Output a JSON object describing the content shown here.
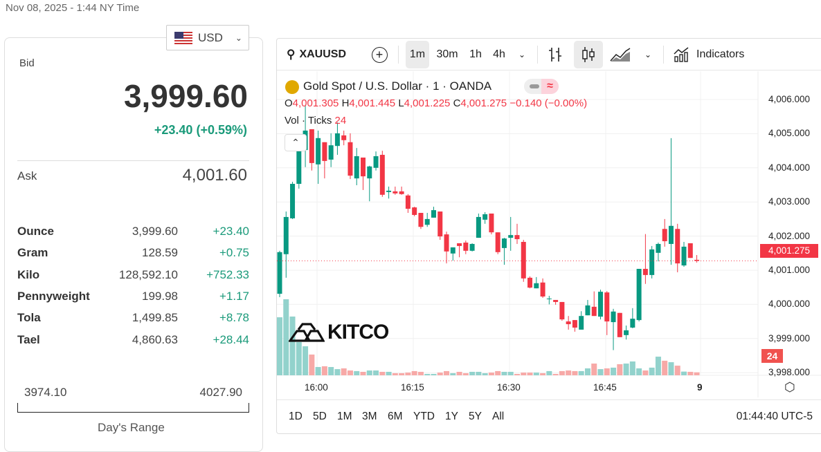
{
  "header": {
    "datetime": "Nov 08, 2025 - 1:44 NY Time"
  },
  "currency": {
    "selected": "USD",
    "flag_icon": "us-flag-icon"
  },
  "quote": {
    "bid_label": "Bid",
    "bid": "3,999.60",
    "change": "+23.40 (+0.59%)",
    "ask_label": "Ask",
    "ask": "4,001.60"
  },
  "weights": [
    {
      "unit": "Ounce",
      "price": "3,999.60",
      "change": "+23.40"
    },
    {
      "unit": "Gram",
      "price": "128.59",
      "change": "+0.75"
    },
    {
      "unit": "Kilo",
      "price": "128,592.10",
      "change": "+752.33"
    },
    {
      "unit": "Pennyweight",
      "price": "199.98",
      "change": "+1.17"
    },
    {
      "unit": "Tola",
      "price": "1,499.85",
      "change": "+8.78"
    },
    {
      "unit": "Tael",
      "price": "4,860.63",
      "change": "+28.44"
    }
  ],
  "day_range": {
    "low": "3974.10",
    "high": "4027.90",
    "label": "Day's Range"
  },
  "toolbar": {
    "symbol": "XAUUSD",
    "intervals": [
      "1m",
      "30m",
      "1h",
      "4h"
    ],
    "active_interval": "1m",
    "indicators": "Indicators"
  },
  "legend": {
    "title": "Gold Spot / U.S. Dollar · 1 · OANDA",
    "o_label": "O",
    "o": "4,001.305",
    "h_label": "H",
    "h": "4,001.445",
    "l_label": "L",
    "l": "4,001.225",
    "c_label": "C",
    "c": "4,001.275",
    "change": "−0.140 (−0.00%)",
    "vol_label": "Vol · Ticks",
    "vol": "24"
  },
  "colors": {
    "up": "#089981",
    "down": "#f23645",
    "vol_up": "#92d2cc",
    "vol_down": "#f7a9a7"
  },
  "watermark": "KITCO",
  "bottom": {
    "ranges": [
      "1D",
      "5D",
      "1M",
      "3M",
      "6M",
      "YTD",
      "1Y",
      "5Y",
      "All"
    ],
    "clock": "01:44:40 UTC-5"
  },
  "chart_data": {
    "type": "candlestick",
    "title": "Gold Spot / U.S. Dollar · 1 · OANDA",
    "y_ticks": [
      "4,006.000",
      "4,005.000",
      "4,004.000",
      "4,003.000",
      "4,002.000",
      "4,001.000",
      "4,000.000",
      "3,999.000",
      "3,998.000"
    ],
    "y_tick_values": [
      4006,
      4005,
      4004,
      4003,
      4002,
      4001,
      4000,
      3999,
      3998
    ],
    "x_ticks": [
      "16:00",
      "16:15",
      "16:30",
      "16:45",
      "9"
    ],
    "last_price": "4,001.275",
    "last_volume": "24",
    "grid": true,
    "ohlc": [
      [
        4000.31,
        4001.57,
        4000.21,
        4001.53
      ],
      [
        4001.47,
        4002.72,
        4000.78,
        4002.56
      ],
      [
        4002.52,
        4003.59,
        4002.5,
        4003.53
      ],
      [
        4003.53,
        4004.72,
        4003.39,
        4004.54
      ],
      [
        4004.52,
        4005.82,
        4004.02,
        4005.09
      ],
      [
        4005.13,
        4005.13,
        4003.92,
        4004.14
      ],
      [
        4004.1,
        4005.09,
        4003.53,
        4004.87
      ],
      [
        4004.75,
        4004.75,
        4003.69,
        4004.2
      ],
      [
        4004.24,
        4005.01,
        4004.02,
        4004.66
      ],
      [
        4004.64,
        4005.33,
        4004.38,
        4005.01
      ],
      [
        4004.95,
        4005.09,
        4004.66,
        4004.81
      ],
      [
        4004.75,
        4005.01,
        4003.67,
        4003.77
      ],
      [
        4003.69,
        4004.58,
        4003.49,
        4004.34
      ],
      [
        4004.3,
        4004.3,
        4003.35,
        4003.75
      ],
      [
        4003.69,
        4004.06,
        4003.02,
        4004.04
      ],
      [
        4004.0,
        4004.48,
        4003.92,
        4004.34
      ],
      [
        4004.38,
        4004.5,
        4003.15,
        4003.21
      ],
      [
        4003.29,
        4003.45,
        4003.1,
        4003.33
      ],
      [
        4003.31,
        4003.45,
        4003.21,
        4003.25
      ],
      [
        4003.31,
        4003.45,
        4003.21,
        4003.23
      ],
      [
        4003.19,
        4003.23,
        4002.68,
        4002.8
      ],
      [
        4002.84,
        4002.86,
        4002.58,
        4002.62
      ],
      [
        4002.68,
        4002.68,
        4002.21,
        4002.27
      ],
      [
        4002.33,
        4002.68,
        4002.27,
        4002.5
      ],
      [
        4002.54,
        4002.86,
        4002.54,
        4002.76
      ],
      [
        4002.72,
        4002.72,
        4001.89,
        4001.99
      ],
      [
        4002.05,
        4002.13,
        4001.2,
        4001.55
      ],
      [
        4001.49,
        4001.67,
        4001.28,
        4001.67
      ],
      [
        4001.79,
        4001.79,
        4001.38,
        4001.71
      ],
      [
        4001.81,
        4001.87,
        4001.47,
        4001.57
      ],
      [
        4001.57,
        4001.79,
        4001.55,
        4001.77
      ],
      [
        4001.95,
        4002.66,
        4001.95,
        4002.56
      ],
      [
        4002.48,
        4002.7,
        4002.36,
        4002.64
      ],
      [
        4002.66,
        4002.66,
        4002.05,
        4002.11
      ],
      [
        4002.11,
        4002.11,
        4001.47,
        4001.53
      ],
      [
        4001.65,
        4001.95,
        4001.16,
        4001.93
      ],
      [
        4001.95,
        4002.56,
        4001.57,
        4002.03
      ],
      [
        4002.03,
        4002.36,
        4001.77,
        4001.91
      ],
      [
        4001.83,
        4001.89,
        4000.66,
        4000.76
      ],
      [
        4000.78,
        4000.82,
        4000.47,
        4000.49
      ],
      [
        4000.47,
        4000.8,
        4000.47,
        4000.62
      ],
      [
        4000.64,
        4000.76,
        4000.19,
        4000.23
      ],
      [
        4000.15,
        4000.25,
        4000.0,
        4000.17
      ],
      [
        4000.13,
        4000.13,
        3999.99,
        4000.07
      ],
      [
        4000.07,
        4000.07,
        3999.52,
        3999.56
      ],
      [
        3999.5,
        3999.66,
        3999.26,
        3999.42
      ],
      [
        3999.54,
        3999.54,
        3999.2,
        3999.32
      ],
      [
        3999.26,
        3999.8,
        3999.26,
        3999.66
      ],
      [
        3999.68,
        4000.13,
        3999.68,
        3999.97
      ],
      [
        3999.93,
        4000.38,
        3999.66,
        3999.66
      ],
      [
        3999.64,
        4000.43,
        3999.56,
        4000.37
      ],
      [
        4000.35,
        4000.39,
        3999.1,
        3999.5
      ],
      [
        3999.48,
        3999.87,
        3998.66,
        3999.79
      ],
      [
        3999.75,
        3999.75,
        3999.04,
        3999.04
      ],
      [
        3999.1,
        3999.38,
        3998.97,
        3999.24
      ],
      [
        3999.32,
        3999.89,
        3999.3,
        3999.58
      ],
      [
        3999.54,
        4001.04,
        3999.5,
        4001.04
      ],
      [
        4001.04,
        4002.06,
        4000.6,
        4000.86
      ],
      [
        4000.86,
        4001.71,
        4000.76,
        4001.61
      ],
      [
        4001.51,
        4001.81,
        4001.26,
        4001.77
      ],
      [
        4002.21,
        4002.5,
        4001.69,
        4001.85
      ],
      [
        4001.77,
        4004.87,
        4001.16,
        4002.3
      ],
      [
        4002.21,
        4002.36,
        4000.94,
        4001.2
      ],
      [
        4001.14,
        4001.83,
        4001.1,
        4001.69
      ],
      [
        4001.79,
        4001.79,
        4001.36,
        4001.36
      ],
      [
        4001.305,
        4001.445,
        4001.225,
        4001.275
      ]
    ],
    "volume": [
      470,
      616,
      476,
      269,
      235,
      168,
      67,
      73,
      67,
      50,
      56,
      39,
      34,
      28,
      39,
      39,
      28,
      28,
      17,
      17,
      22,
      34,
      28,
      11,
      11,
      22,
      34,
      17,
      28,
      17,
      28,
      28,
      17,
      22,
      34,
      28,
      28,
      11,
      22,
      22,
      22,
      17,
      34,
      11,
      34,
      39,
      34,
      34,
      56,
      95,
      50,
      56,
      62,
      90,
      95,
      112,
      56,
      39,
      62,
      151,
      118,
      106,
      78,
      30,
      28,
      24
    ]
  }
}
